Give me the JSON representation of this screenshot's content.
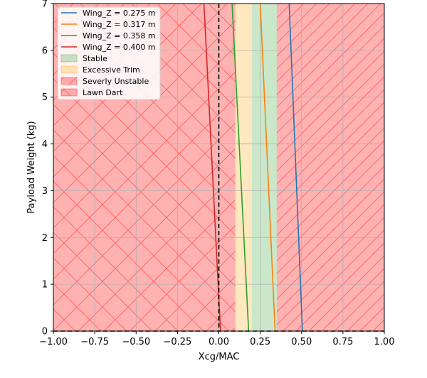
{
  "chart_data": {
    "type": "line",
    "xlabel": "Xcg/MAC",
    "ylabel": "Payload Weight (kg)",
    "xlim": [
      -1.0,
      1.0
    ],
    "ylim": [
      0,
      7
    ],
    "x_ticks": [
      -1.0,
      -0.75,
      -0.5,
      -0.25,
      0.0,
      0.25,
      0.5,
      0.75,
      1.0
    ],
    "x_tick_labels": [
      "−1.00",
      "−0.75",
      "−0.50",
      "−0.25",
      "0.00",
      "0.25",
      "0.50",
      "0.75",
      "1.00"
    ],
    "y_ticks": [
      0,
      1,
      2,
      3,
      4,
      5,
      6,
      7
    ],
    "y_tick_labels": [
      "0",
      "1",
      "2",
      "3",
      "4",
      "5",
      "6",
      "7"
    ],
    "grid": true,
    "legend_position": "top-left",
    "regions": [
      {
        "name": "Stable",
        "x_range": [
          0.2,
          0.35
        ],
        "color": "#2ca02c",
        "hatch": "none"
      },
      {
        "name": "Excessive Trim",
        "x_range": [
          0.1,
          0.2
        ],
        "color": "#ffa500",
        "hatch": "none"
      },
      {
        "name": "Severly Unstable",
        "x_range": [
          0.35,
          1.0
        ],
        "color": "#ff0000",
        "hatch": "diagonal"
      },
      {
        "name": "Lawn Dart",
        "x_range": [
          -1.0,
          0.1
        ],
        "color": "#ff0000",
        "hatch": "cross"
      }
    ],
    "reference_lines": [
      {
        "orientation": "vertical",
        "value": 0.0,
        "style": "dashed"
      },
      {
        "orientation": "horizontal",
        "value": 0.0,
        "style": "dashed"
      }
    ],
    "series": [
      {
        "name": "Wing_Z = 0.275 m",
        "color": "#1f77b4",
        "x": [
          0.505,
          0.425
        ],
        "y": [
          0,
          7
        ]
      },
      {
        "name": "Wing_Z = 0.317 m",
        "color": "#ff7f0e",
        "x": [
          0.34,
          0.25
        ],
        "y": [
          0,
          7
        ]
      },
      {
        "name": "Wing_Z = 0.358 m",
        "color": "#2ca02c",
        "x": [
          0.18,
          0.08
        ],
        "y": [
          0,
          7
        ]
      },
      {
        "name": "Wing_Z = 0.400 m",
        "color": "#d62728",
        "x": [
          0.01,
          -0.09
        ],
        "y": [
          0,
          7
        ]
      }
    ]
  }
}
